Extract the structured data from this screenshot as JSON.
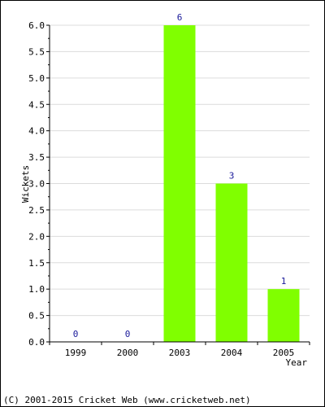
{
  "chart_data": {
    "type": "bar",
    "categories": [
      "1999",
      "2000",
      "2003",
      "2004",
      "2005"
    ],
    "values": [
      0,
      0,
      6,
      3,
      1
    ],
    "data_labels": [
      "0",
      "0",
      "6",
      "3",
      "1"
    ],
    "xlabel": "Year",
    "ylabel": "Wickets",
    "ylim": [
      0,
      6
    ],
    "yticks": [
      "0.0",
      "0.5",
      "1.0",
      "1.5",
      "2.0",
      "2.5",
      "3.0",
      "3.5",
      "4.0",
      "4.5",
      "5.0",
      "5.5",
      "6.0"
    ],
    "grid": true,
    "bar_color": "#80ff00",
    "label_color": "#1a1a9a"
  },
  "footer": {
    "copyright": "(C) 2001-2015 Cricket Web (www.cricketweb.net)"
  }
}
